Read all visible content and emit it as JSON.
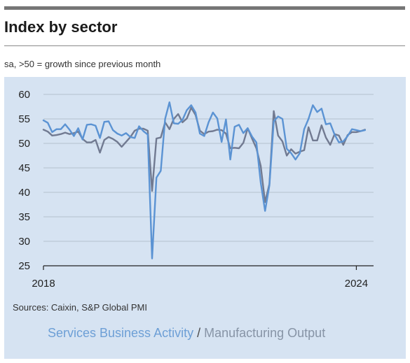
{
  "title": "Index by sector",
  "subtitle": "sa, >50 = growth since previous month",
  "source": "Sources: Caixin, S&P Global PMI",
  "legend": {
    "services": "Services Business Activity",
    "separator": " / ",
    "manufacturing": "Manufacturing Output"
  },
  "colors": {
    "services": "#5b93d3",
    "manufacturing": "#717a91",
    "panel": "#d6e3f2",
    "grid": "#b4c0cd"
  },
  "chart_data": {
    "type": "line",
    "title": "Index by sector",
    "subtitle": "sa, >50 = growth since previous month",
    "xlabel": "",
    "ylabel": "",
    "ylim": [
      25,
      60
    ],
    "yticks": [
      25,
      30,
      35,
      40,
      45,
      50,
      55,
      60
    ],
    "xlim": [
      2018,
      2024.33
    ],
    "xtick_labels": [
      "2018",
      "2024"
    ],
    "xticks": [
      2018,
      2024
    ],
    "grid": true,
    "series": [
      {
        "name": "Services Business Activity",
        "color": "#5b93d3",
        "start": "2018-01",
        "values": [
          54.7,
          54.2,
          52.3,
          52.9,
          52.9,
          53.9,
          52.8,
          51.5,
          53.1,
          50.8,
          53.8,
          53.9,
          53.6,
          51.1,
          54.4,
          54.5,
          52.7,
          52.0,
          51.6,
          52.1,
          51.3,
          51.1,
          53.5,
          52.5,
          51.8,
          26.5,
          43.0,
          44.4,
          55.0,
          58.4,
          54.1,
          54.0,
          54.8,
          56.8,
          57.8,
          56.3,
          52.0,
          51.5,
          54.3,
          56.3,
          55.1,
          50.3,
          54.9,
          46.7,
          53.4,
          53.8,
          52.1,
          53.1,
          51.4,
          50.2,
          42.0,
          36.2,
          41.4,
          54.5,
          55.5,
          55.0,
          48.9,
          48.0,
          46.7,
          48.0,
          52.9,
          55.0,
          57.8,
          56.4,
          57.1,
          53.9,
          54.1,
          51.8,
          50.2,
          50.4,
          51.5,
          52.9,
          52.7,
          52.5,
          52.7
        ]
      },
      {
        "name": "Manufacturing Output",
        "color": "#717a91",
        "start": "2018-01",
        "values": [
          52.8,
          52.4,
          51.6,
          51.7,
          51.9,
          52.2,
          51.9,
          52.1,
          52.4,
          50.9,
          50.2,
          50.2,
          50.7,
          48.1,
          50.7,
          51.3,
          50.9,
          50.3,
          49.3,
          50.3,
          51.3,
          52.6,
          53.0,
          53.0,
          52.6,
          40.3,
          51.0,
          51.2,
          54.3,
          52.9,
          55.0,
          56.0,
          54.3,
          55.1,
          57.3,
          55.8,
          52.6,
          51.9,
          52.4,
          52.5,
          52.8,
          52.7,
          52.0,
          49.0,
          49.1,
          49.0,
          50.1,
          53.1,
          51.0,
          49.0,
          45.4,
          38.0,
          41.7,
          56.6,
          51.6,
          50.4,
          47.5,
          48.8,
          47.9,
          48.3,
          48.6,
          53.3,
          50.6,
          50.6,
          53.7,
          51.2,
          49.7,
          51.9,
          51.6,
          49.7,
          51.7,
          52.3,
          52.3,
          52.5,
          52.8
        ]
      }
    ]
  }
}
